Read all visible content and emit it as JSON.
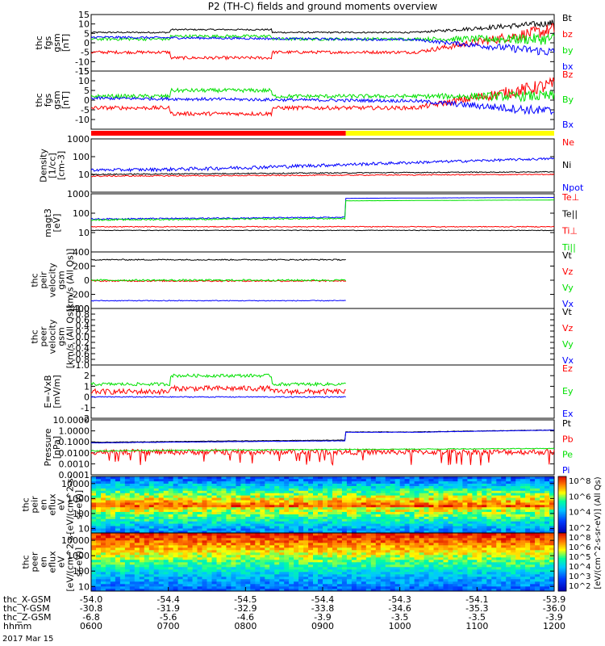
{
  "title": "P2 (TH-C) fields and ground moments overview",
  "date_label": "2017 Mar 15",
  "colors": {
    "black": "#000000",
    "red": "#ff0000",
    "green": "#00e000",
    "blue": "#0000ff",
    "yellow": "#ffff00"
  },
  "chart_data": [
    {
      "type": "line",
      "ylabel_lines": [
        "thc",
        "fgs",
        "gsm",
        "[nT]"
      ],
      "ylim": [
        -15,
        15
      ],
      "yscale": "linear",
      "yticks": [
        "15",
        "10",
        "5",
        "0",
        "-5",
        "-10",
        "-15"
      ],
      "legend": [
        {
          "name": "Bt",
          "color": "#000000"
        },
        {
          "name": "bz",
          "color": "#ff0000"
        },
        {
          "name": "by",
          "color": "#00e000"
        },
        {
          "name": "bx",
          "color": "#0000ff"
        }
      ]
    },
    {
      "type": "line",
      "ylabel_lines": [
        "thc",
        "fgs",
        "gsm",
        "[nT]"
      ],
      "ylim": [
        -15,
        15
      ],
      "yscale": "linear",
      "yticks": [
        "15",
        "10",
        "5",
        "0",
        "-5",
        "-10"
      ],
      "legend": [
        {
          "name": "Bz",
          "color": "#ff0000"
        },
        {
          "name": "By",
          "color": "#00e000"
        },
        {
          "name": "Bx",
          "color": "#0000ff"
        }
      ]
    },
    {
      "type": "line",
      "ylabel_lines": [
        "Density",
        "[1/cc]",
        "[cm-3]"
      ],
      "ylim": [
        1,
        1000
      ],
      "yscale": "log",
      "yticks": [
        "1000",
        "100",
        "10"
      ],
      "legend": [
        {
          "name": "Ne",
          "color": "#ff0000"
        },
        {
          "name": "Ni",
          "color": "#000000"
        },
        {
          "name": "Npot",
          "color": "#0000ff"
        }
      ]
    },
    {
      "type": "line",
      "ylabel_lines": [
        "magt3",
        "[eV]"
      ],
      "ylim": [
        1,
        1000
      ],
      "yscale": "log",
      "yticks": [
        "1000",
        "100",
        "10"
      ],
      "legend": [
        {
          "name": "Te⊥",
          "color": "#ff0000"
        },
        {
          "name": "Te||",
          "color": "#000000"
        },
        {
          "name": "Ti⊥",
          "color": "#ff0000"
        },
        {
          "name": "Ti||",
          "color": "#00e000"
        }
      ]
    },
    {
      "type": "line",
      "ylabel_lines": [
        "thc",
        "peir",
        "velocity",
        "gsm",
        "[km/s (All Qs)]"
      ],
      "ylim": [
        -400,
        400
      ],
      "yscale": "linear",
      "yticks": [
        "400",
        "200",
        "0",
        "-200",
        "-400"
      ],
      "legend": [
        {
          "name": "Vt",
          "color": "#000000"
        },
        {
          "name": "Vz",
          "color": "#ff0000"
        },
        {
          "name": "Vy",
          "color": "#00e000"
        },
        {
          "name": "Vx",
          "color": "#0000ff"
        }
      ]
    },
    {
      "type": "line",
      "ylabel_lines": [
        "thc",
        "peer",
        "velocity",
        "gsm",
        "[km/s (All Qs)]"
      ],
      "ylim": [
        -1,
        1
      ],
      "yscale": "linear",
      "yticks": [
        "1.0",
        "0.8",
        "0.6",
        "0.4",
        "0.2",
        "0.0",
        "-0.2",
        "-0.4",
        "-0.6",
        "-0.8",
        "-1.0"
      ],
      "legend": [
        {
          "name": "Vt",
          "color": "#000000"
        },
        {
          "name": "Vz",
          "color": "#ff0000"
        },
        {
          "name": "Vy",
          "color": "#00e000"
        },
        {
          "name": "Vx",
          "color": "#0000ff"
        }
      ]
    },
    {
      "type": "line",
      "ylabel_lines": [
        "E=-VxB",
        "[mV/m]"
      ],
      "ylim": [
        -2,
        3
      ],
      "yscale": "linear",
      "yticks": [
        "2",
        "1",
        "0",
        "-1",
        "-2"
      ],
      "legend": [
        {
          "name": "Ez",
          "color": "#ff0000"
        },
        {
          "name": "Ey",
          "color": "#00e000"
        },
        {
          "name": "Ex",
          "color": "#0000ff"
        }
      ]
    },
    {
      "type": "line",
      "ylabel_lines": [
        "Pressure",
        "[nPa]"
      ],
      "ylim": [
        0.0001,
        10
      ],
      "yscale": "log",
      "yticks": [
        "10.0000",
        "1.0000",
        "0.1000",
        "0.0100",
        "0.0010",
        "0.0001"
      ],
      "legend": [
        {
          "name": "Pt",
          "color": "#000000"
        },
        {
          "name": "Pb",
          "color": "#ff0000"
        },
        {
          "name": "Pe",
          "color": "#00e000"
        },
        {
          "name": "Pi",
          "color": "#0000ff"
        }
      ]
    },
    {
      "type": "heatmap",
      "ylabel_lines": [
        "thc",
        "peir",
        "en",
        "eflux",
        "eV",
        "[eV/(cm^2-s-",
        "sr-eV)]"
      ],
      "ylim": [
        5,
        30000
      ],
      "yscale": "log",
      "yticks": [
        "10000",
        "1000",
        "100",
        "10"
      ],
      "colorbar_ticks": [
        "10^8",
        "10^6",
        "10^4",
        "10^2"
      ],
      "colorbar_label": "[eV/(cm^2-s-sr-eV)] (All Qs)"
    },
    {
      "type": "heatmap",
      "ylabel_lines": [
        "thc",
        "peer",
        "en",
        "eflux",
        "eV",
        "[eV/(cm^2-s-",
        "sr-eV)]"
      ],
      "ylim": [
        5,
        30000
      ],
      "yscale": "log",
      "yticks": [
        "10000",
        "1000",
        "100",
        "10"
      ],
      "colorbar_ticks": [
        "10^8",
        "10^6",
        "10^5",
        "10^4",
        "10^3",
        "10^2"
      ],
      "colorbar_label": "[eV/(cm^2-s-sr-eV)] (All Qs)"
    }
  ],
  "time_axis": {
    "row_labels": [
      "thc_X-GSM",
      "thc_Y-GSM",
      "thc_Z-GSM",
      "hhmm"
    ],
    "columns": [
      [
        "-54.0",
        "-30.8",
        "-6.8",
        "0600"
      ],
      [
        "-54.4",
        "-31.9",
        "-5.6",
        "0700"
      ],
      [
        "-54.5",
        "-32.9",
        "-4.6",
        "0800"
      ],
      [
        "-54.4",
        "-33.8",
        "-3.9",
        "0900"
      ],
      [
        "-54.3",
        "-34.6",
        "-3.5",
        "1000"
      ],
      [
        "-54.1",
        "-35.3",
        "-3.5",
        "1100"
      ],
      [
        "-53.9",
        "-36.0",
        "-3.9",
        "1200"
      ]
    ]
  }
}
